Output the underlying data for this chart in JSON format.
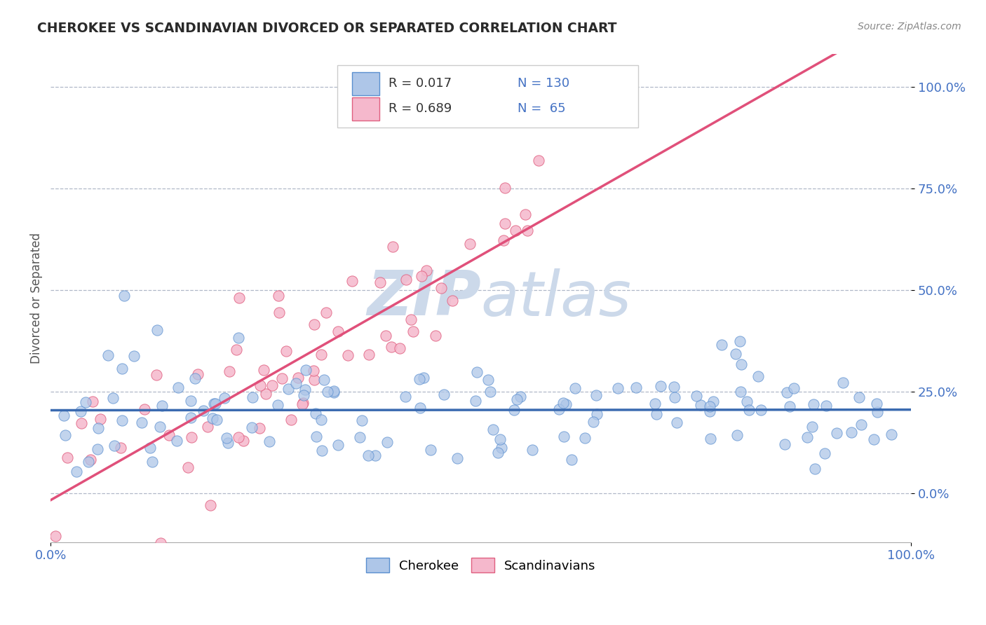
{
  "title": "CHEROKEE VS SCANDINAVIAN DIVORCED OR SEPARATED CORRELATION CHART",
  "source": "Source: ZipAtlas.com",
  "ylabel": "Divorced or Separated",
  "xlim": [
    0.0,
    100.0
  ],
  "ylim": [
    -12.0,
    108.0
  ],
  "cherokee_R": 0.017,
  "cherokee_N": 130,
  "scandinavian_R": 0.689,
  "scandinavian_N": 65,
  "cherokee_fill": "#aec6e8",
  "cherokee_edge": "#5b8fcf",
  "scandinavian_fill": "#f5b8cc",
  "scandinavian_edge": "#e06080",
  "cherokee_line_color": "#3a6ab0",
  "scandinavian_line_color": "#e0507a",
  "title_color": "#2a2a2a",
  "legend_R_color": "#333333",
  "legend_N_color": "#4472c4",
  "watermark_color": "#ccd9ea",
  "background_color": "#ffffff",
  "grid_color": "#b0b8c8",
  "tick_color": "#4472c4",
  "ytick_labels": [
    "0.0%",
    "25.0%",
    "50.0%",
    "75.0%",
    "100.0%"
  ],
  "ytick_values": [
    0,
    25,
    50,
    75,
    100
  ],
  "cherokee_seed": 42,
  "scandinavian_seed": 7
}
